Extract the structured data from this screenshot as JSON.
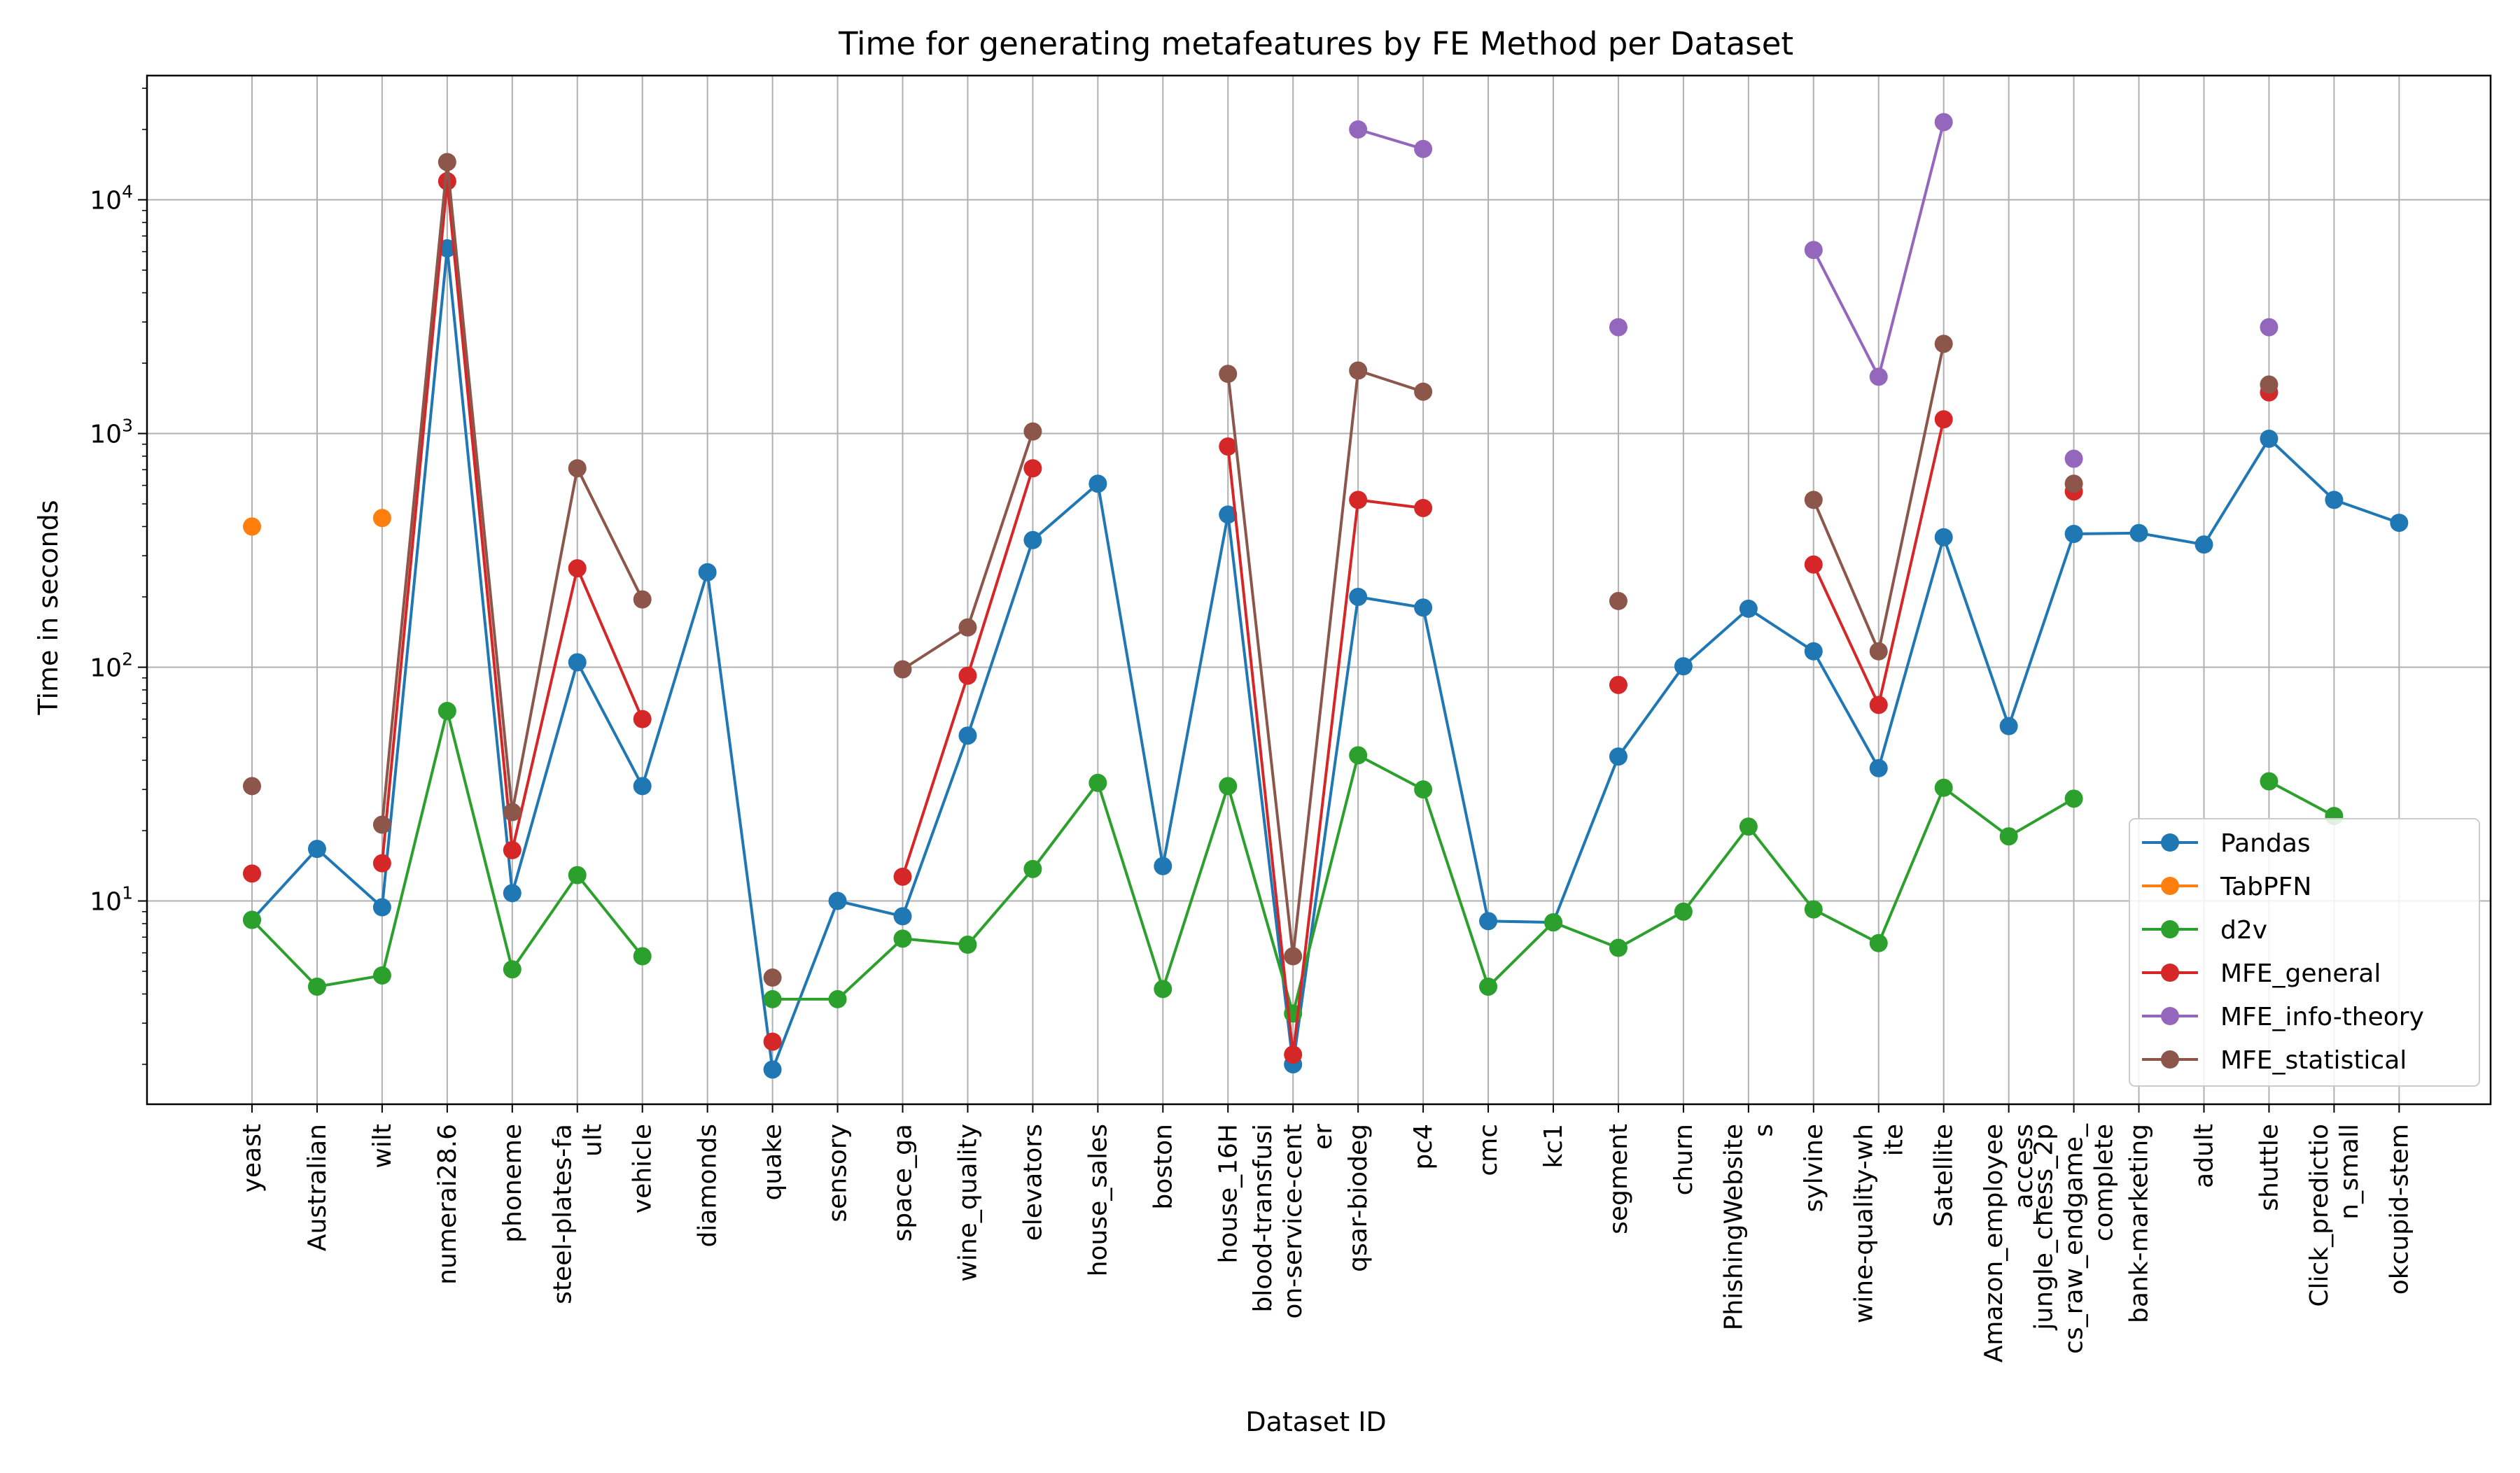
{
  "chart_data": {
    "type": "line",
    "title": "Time for generating metafeatures by FE Method per Dataset",
    "xlabel": "Dataset ID",
    "ylabel": "Time in seconds",
    "yscale": "log",
    "ylim": [
      1.35,
      34000
    ],
    "yticks": [
      {
        "value": 10,
        "base": "10",
        "exp": "1"
      },
      {
        "value": 100,
        "base": "10",
        "exp": "2"
      },
      {
        "value": 1000,
        "base": "10",
        "exp": "3"
      },
      {
        "value": 10000,
        "base": "10",
        "exp": "4"
      }
    ],
    "grid": true,
    "legend_position": "lower right",
    "categories": [
      [
        "yeast"
      ],
      [
        "Australian"
      ],
      [
        "wilt"
      ],
      [
        "numerai28.6"
      ],
      [
        "phoneme"
      ],
      [
        "steel-plates-fa",
        "ult"
      ],
      [
        "vehicle"
      ],
      [
        "diamonds"
      ],
      [
        "quake"
      ],
      [
        "sensory"
      ],
      [
        "space_ga"
      ],
      [
        "wine_quality"
      ],
      [
        "elevators"
      ],
      [
        "house_sales"
      ],
      [
        "boston"
      ],
      [
        "house_16H"
      ],
      [
        "blood-transfusi",
        "on-service-cent",
        "er"
      ],
      [
        "qsar-biodeg"
      ],
      [
        "pc4"
      ],
      [
        "cmc"
      ],
      [
        "kc1"
      ],
      [
        "segment"
      ],
      [
        "churn"
      ],
      [
        "PhishingWebsite",
        "s"
      ],
      [
        "sylvine"
      ],
      [
        "wine-quality-wh",
        "ite"
      ],
      [
        "Satellite"
      ],
      [
        "Amazon_employee",
        "_access"
      ],
      [
        "jungle_chess_2p",
        "cs_raw_endgame_",
        "complete"
      ],
      [
        "bank-marketing"
      ],
      [
        "adult"
      ],
      [
        "shuttle"
      ],
      [
        "Click_predictio",
        "n_small"
      ],
      [
        "okcupid-stem"
      ]
    ],
    "series": [
      {
        "name": "Pandas",
        "color": "#1f77b4",
        "values": [
          8.3,
          16.7,
          9.4,
          6200,
          10.8,
          105,
          31,
          255,
          1.9,
          10.0,
          8.6,
          51,
          350,
          610,
          14.1,
          450,
          2.0,
          200,
          180,
          8.2,
          8.1,
          41.5,
          101,
          178,
          117,
          37,
          360,
          56,
          372,
          375,
          335,
          950,
          520,
          415
        ]
      },
      {
        "name": "TabPFN",
        "color": "#ff7f0e",
        "values": [
          400,
          null,
          435,
          null,
          null,
          null,
          null,
          null,
          null,
          null,
          null,
          null,
          null,
          null,
          null,
          null,
          null,
          null,
          null,
          null,
          null,
          null,
          null,
          null,
          null,
          null,
          null,
          null,
          null,
          null,
          null,
          null,
          null,
          null
        ]
      },
      {
        "name": "d2v",
        "color": "#2ca02c",
        "values": [
          8.3,
          4.3,
          4.8,
          65,
          5.1,
          12.9,
          5.8,
          null,
          3.8,
          3.8,
          6.9,
          6.5,
          13.7,
          32,
          4.2,
          31,
          3.3,
          42,
          30,
          4.3,
          8.1,
          6.3,
          9.0,
          20.8,
          9.2,
          6.6,
          30.5,
          18.9,
          27.4,
          null,
          null,
          32.5,
          23.1,
          null
        ]
      },
      {
        "name": "MFE_general",
        "color": "#d62728",
        "values": [
          13.1,
          null,
          14.5,
          12000,
          16.5,
          265,
          60,
          null,
          2.5,
          null,
          12.7,
          92,
          710,
          null,
          null,
          880,
          2.2,
          520,
          480,
          null,
          null,
          84,
          null,
          null,
          275,
          69,
          1150,
          null,
          565,
          null,
          null,
          1500,
          null,
          null
        ]
      },
      {
        "name": "MFE_info-theory",
        "color": "#9467bd",
        "values": [
          null,
          null,
          null,
          null,
          null,
          null,
          null,
          null,
          null,
          null,
          null,
          null,
          null,
          null,
          null,
          null,
          null,
          20000,
          16500,
          null,
          null,
          2850,
          null,
          null,
          6100,
          1750,
          21500,
          null,
          780,
          null,
          null,
          2850,
          null,
          null
        ]
      },
      {
        "name": "MFE_statistical",
        "color": "#8c564b",
        "values": [
          31,
          null,
          21.2,
          14500,
          24,
          710,
          195,
          null,
          4.7,
          null,
          98,
          148,
          1020,
          null,
          null,
          1800,
          5.8,
          1860,
          1510,
          null,
          null,
          192,
          null,
          null,
          520,
          117,
          2420,
          null,
          610,
          null,
          null,
          1620,
          null,
          null
        ]
      }
    ]
  }
}
